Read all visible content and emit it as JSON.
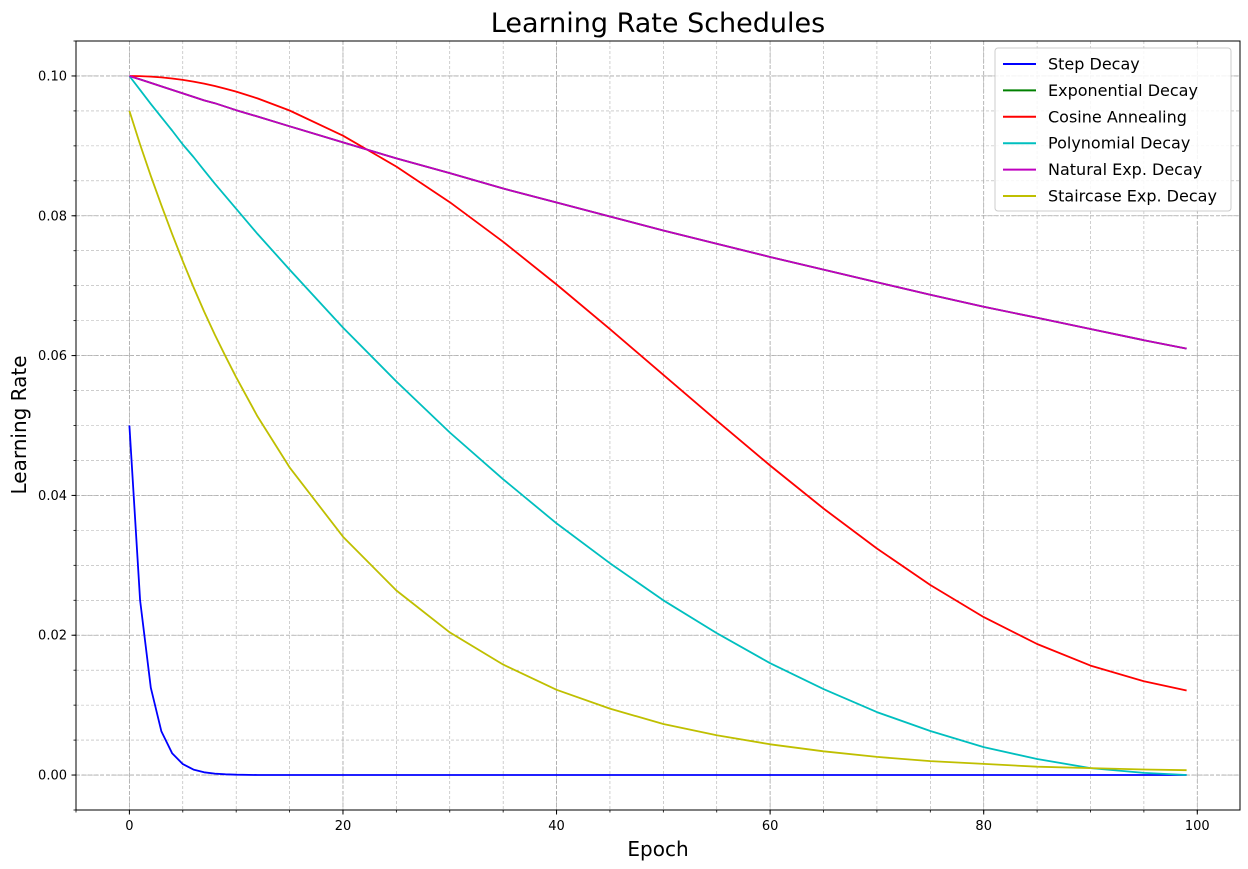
{
  "chart_data": {
    "type": "line",
    "title": "Learning Rate Schedules",
    "xlabel": "Epoch",
    "ylabel": "Learning Rate",
    "xlim": [
      -5,
      104
    ],
    "ylim": [
      -0.005,
      0.105
    ],
    "x_ticks": [
      0,
      20,
      40,
      60,
      80,
      100
    ],
    "x_tick_labels": [
      "0",
      "20",
      "40",
      "60",
      "80",
      "100"
    ],
    "y_ticks": [
      0.0,
      0.02,
      0.04,
      0.06,
      0.08,
      0.1
    ],
    "y_tick_labels": [
      "0.00",
      "0.02",
      "0.04",
      "0.06",
      "0.08",
      "0.10"
    ],
    "grid": "major and minor, dashed",
    "legend_position": "top-right",
    "x": [
      0,
      1,
      2,
      3,
      4,
      5,
      6,
      7,
      8,
      9,
      10,
      12,
      15,
      20,
      25,
      30,
      35,
      40,
      45,
      50,
      55,
      60,
      65,
      70,
      75,
      80,
      85,
      90,
      95,
      99
    ],
    "series": [
      {
        "name": "Step Decay",
        "color": "#0000ff",
        "values": [
          0.05,
          0.025,
          0.0125,
          0.00625,
          0.003125,
          0.0015625,
          0.00078,
          0.00039,
          0.0002,
          0.0001,
          5e-05,
          1e-05,
          0.0,
          0.0,
          0.0,
          0.0,
          0.0,
          0.0,
          0.0,
          0.0,
          0.0,
          0.0,
          0.0,
          0.0,
          0.0,
          0.0,
          0.0,
          0.0,
          0.0,
          0.0
        ]
      },
      {
        "name": "Exponential Decay",
        "color": "#008000",
        "values": [
          0.1,
          0.0995,
          0.099,
          0.0985,
          0.098,
          0.0975,
          0.097,
          0.0965,
          0.0961,
          0.0956,
          0.0951,
          0.0942,
          0.0928,
          0.0905,
          0.0882,
          0.0861,
          0.0839,
          0.0819,
          0.0799,
          0.0779,
          0.076,
          0.0741,
          0.0723,
          0.0705,
          0.0687,
          0.067,
          0.0654,
          0.0638,
          0.0622,
          0.061
        ]
      },
      {
        "name": "Cosine Annealing",
        "color": "#ff0000",
        "values": [
          0.1,
          0.09998,
          0.09991,
          0.0998,
          0.09964,
          0.09944,
          0.09919,
          0.0989,
          0.09856,
          0.09818,
          0.09776,
          0.09679,
          0.09506,
          0.09145,
          0.08704,
          0.08194,
          0.07627,
          0.07017,
          0.06379,
          0.05725,
          0.0507,
          0.04428,
          0.03813,
          0.0324,
          0.02718,
          0.0226,
          0.01874,
          0.01566,
          0.01341,
          0.0121
        ]
      },
      {
        "name": "Polynomial Decay",
        "color": "#00bfbf",
        "values": [
          0.1,
          0.098,
          0.096,
          0.0941,
          0.0922,
          0.0902,
          0.0884,
          0.0865,
          0.0846,
          0.0828,
          0.081,
          0.0774,
          0.0723,
          0.064,
          0.0563,
          0.049,
          0.0423,
          0.036,
          0.0303,
          0.025,
          0.0203,
          0.016,
          0.0123,
          0.009,
          0.0063,
          0.004,
          0.0023,
          0.001,
          0.0003,
          0.0
        ]
      },
      {
        "name": "Natural Exp. Decay",
        "color": "#bf00bf",
        "values": [
          0.1,
          0.0995,
          0.099,
          0.0985,
          0.098,
          0.0975,
          0.097,
          0.0965,
          0.0961,
          0.0956,
          0.0951,
          0.0942,
          0.0928,
          0.0905,
          0.0882,
          0.0861,
          0.0839,
          0.0819,
          0.0799,
          0.0779,
          0.076,
          0.0741,
          0.0723,
          0.0705,
          0.0687,
          0.067,
          0.0654,
          0.0638,
          0.0622,
          0.061
        ]
      },
      {
        "name": "Staircase Exp. Decay",
        "color": "#bfbf00",
        "values": [
          0.095,
          0.0902,
          0.0857,
          0.0815,
          0.0774,
          0.0735,
          0.0698,
          0.0663,
          0.063,
          0.0599,
          0.0569,
          0.0513,
          0.044,
          0.0341,
          0.0264,
          0.0204,
          0.0158,
          0.0122,
          0.0095,
          0.0073,
          0.0057,
          0.0044,
          0.0034,
          0.0026,
          0.002,
          0.0016,
          0.0012,
          0.001,
          0.0008,
          0.0007
        ]
      }
    ]
  }
}
